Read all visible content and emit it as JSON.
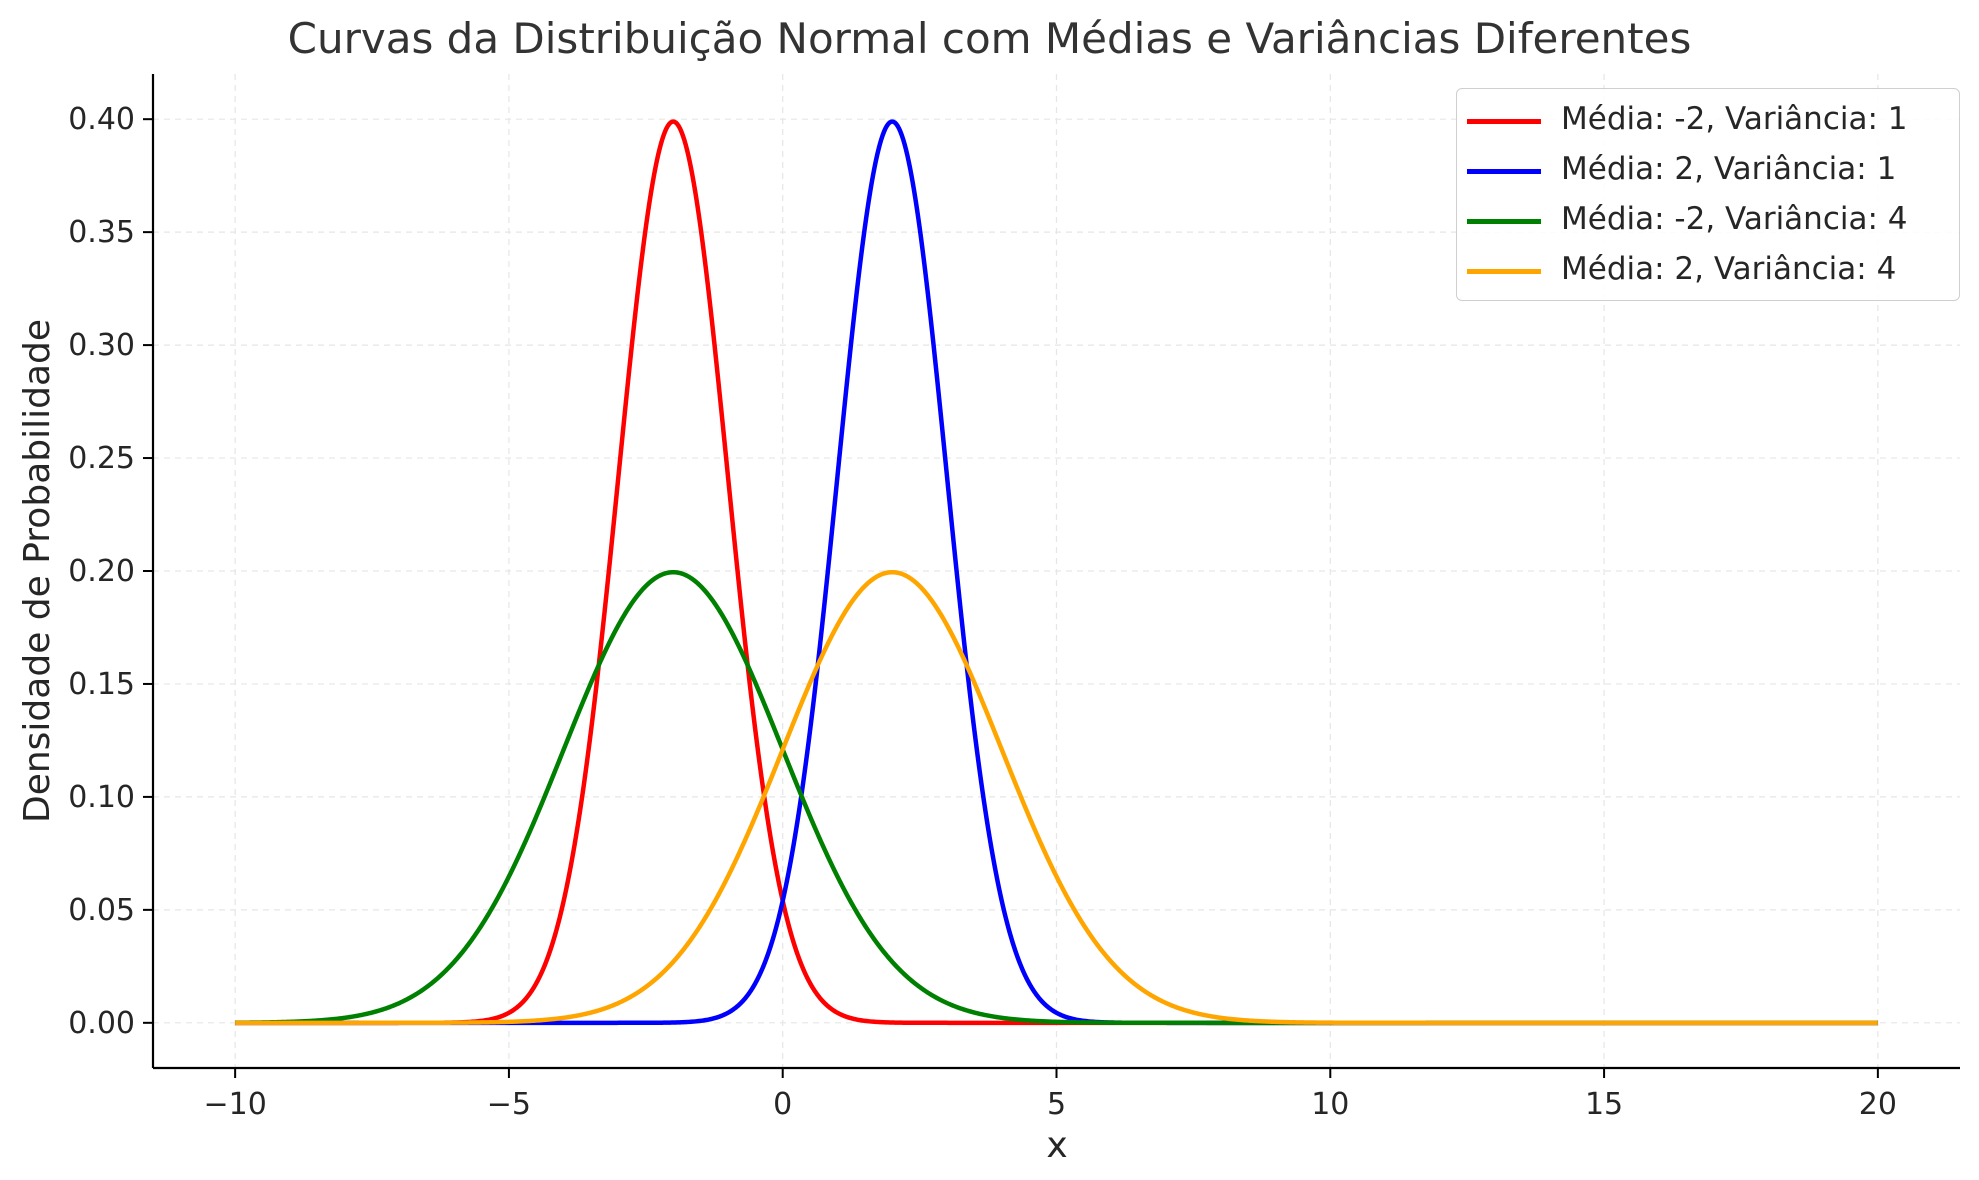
{
  "chart_data": {
    "type": "line",
    "title": "Curvas da Distribuição Normal com Médias e Variâncias Diferentes",
    "xlabel": "x",
    "ylabel": "Densidade de Probabilidade",
    "xlim": [
      -11.5,
      21.5
    ],
    "ylim": [
      -0.02,
      0.42
    ],
    "x_range": [
      -10,
      20
    ],
    "x_ticks": [
      -10,
      -5,
      0,
      5,
      10,
      15,
      20
    ],
    "x_tick_labels": [
      "−10",
      "−5",
      "0",
      "5",
      "10",
      "15",
      "20"
    ],
    "y_ticks": [
      0.0,
      0.05,
      0.1,
      0.15,
      0.2,
      0.25,
      0.3,
      0.35,
      0.4
    ],
    "y_tick_labels": [
      "0.00",
      "0.05",
      "0.10",
      "0.15",
      "0.20",
      "0.25",
      "0.30",
      "0.35",
      "0.40"
    ],
    "grid": true,
    "legend_position": "top-right",
    "series": [
      {
        "name": "Média: -2, Variância: 1",
        "mean": -2,
        "variance": 1,
        "color": "#ff0000"
      },
      {
        "name": "Média: 2, Variância: 1",
        "mean": 2,
        "variance": 1,
        "color": "#0000ff"
      },
      {
        "name": "Média: -2, Variância: 4",
        "mean": -2,
        "variance": 4,
        "color": "#008000"
      },
      {
        "name": "Média: 2, Variância: 4",
        "mean": 2,
        "variance": 4,
        "color": "#ffa500"
      }
    ]
  }
}
